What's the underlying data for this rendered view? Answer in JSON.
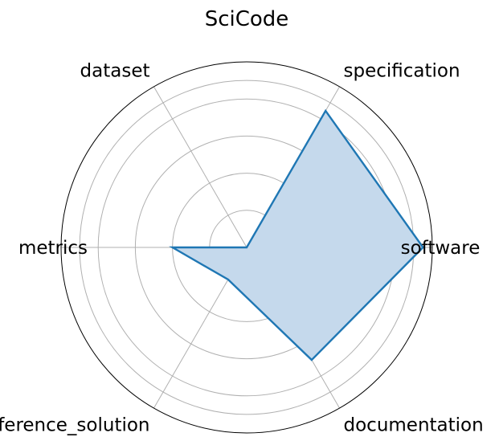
{
  "chart_data": {
    "type": "radar",
    "title": "SciCode",
    "categories": [
      "software",
      "specification",
      "dataset",
      "metrics",
      "reference_solution",
      "documentation"
    ],
    "series": [
      {
        "values": [
          0.95,
          0.85,
          0.0,
          0.4,
          0.2,
          0.7
        ],
        "color": "#1f77b4",
        "fill_color": "#c5d9ec"
      }
    ],
    "rlim": [
      0,
      1
    ],
    "r_gridlines": [
      0.2,
      0.4,
      0.6,
      0.8,
      0.9
    ],
    "grid": true,
    "legend": false
  }
}
